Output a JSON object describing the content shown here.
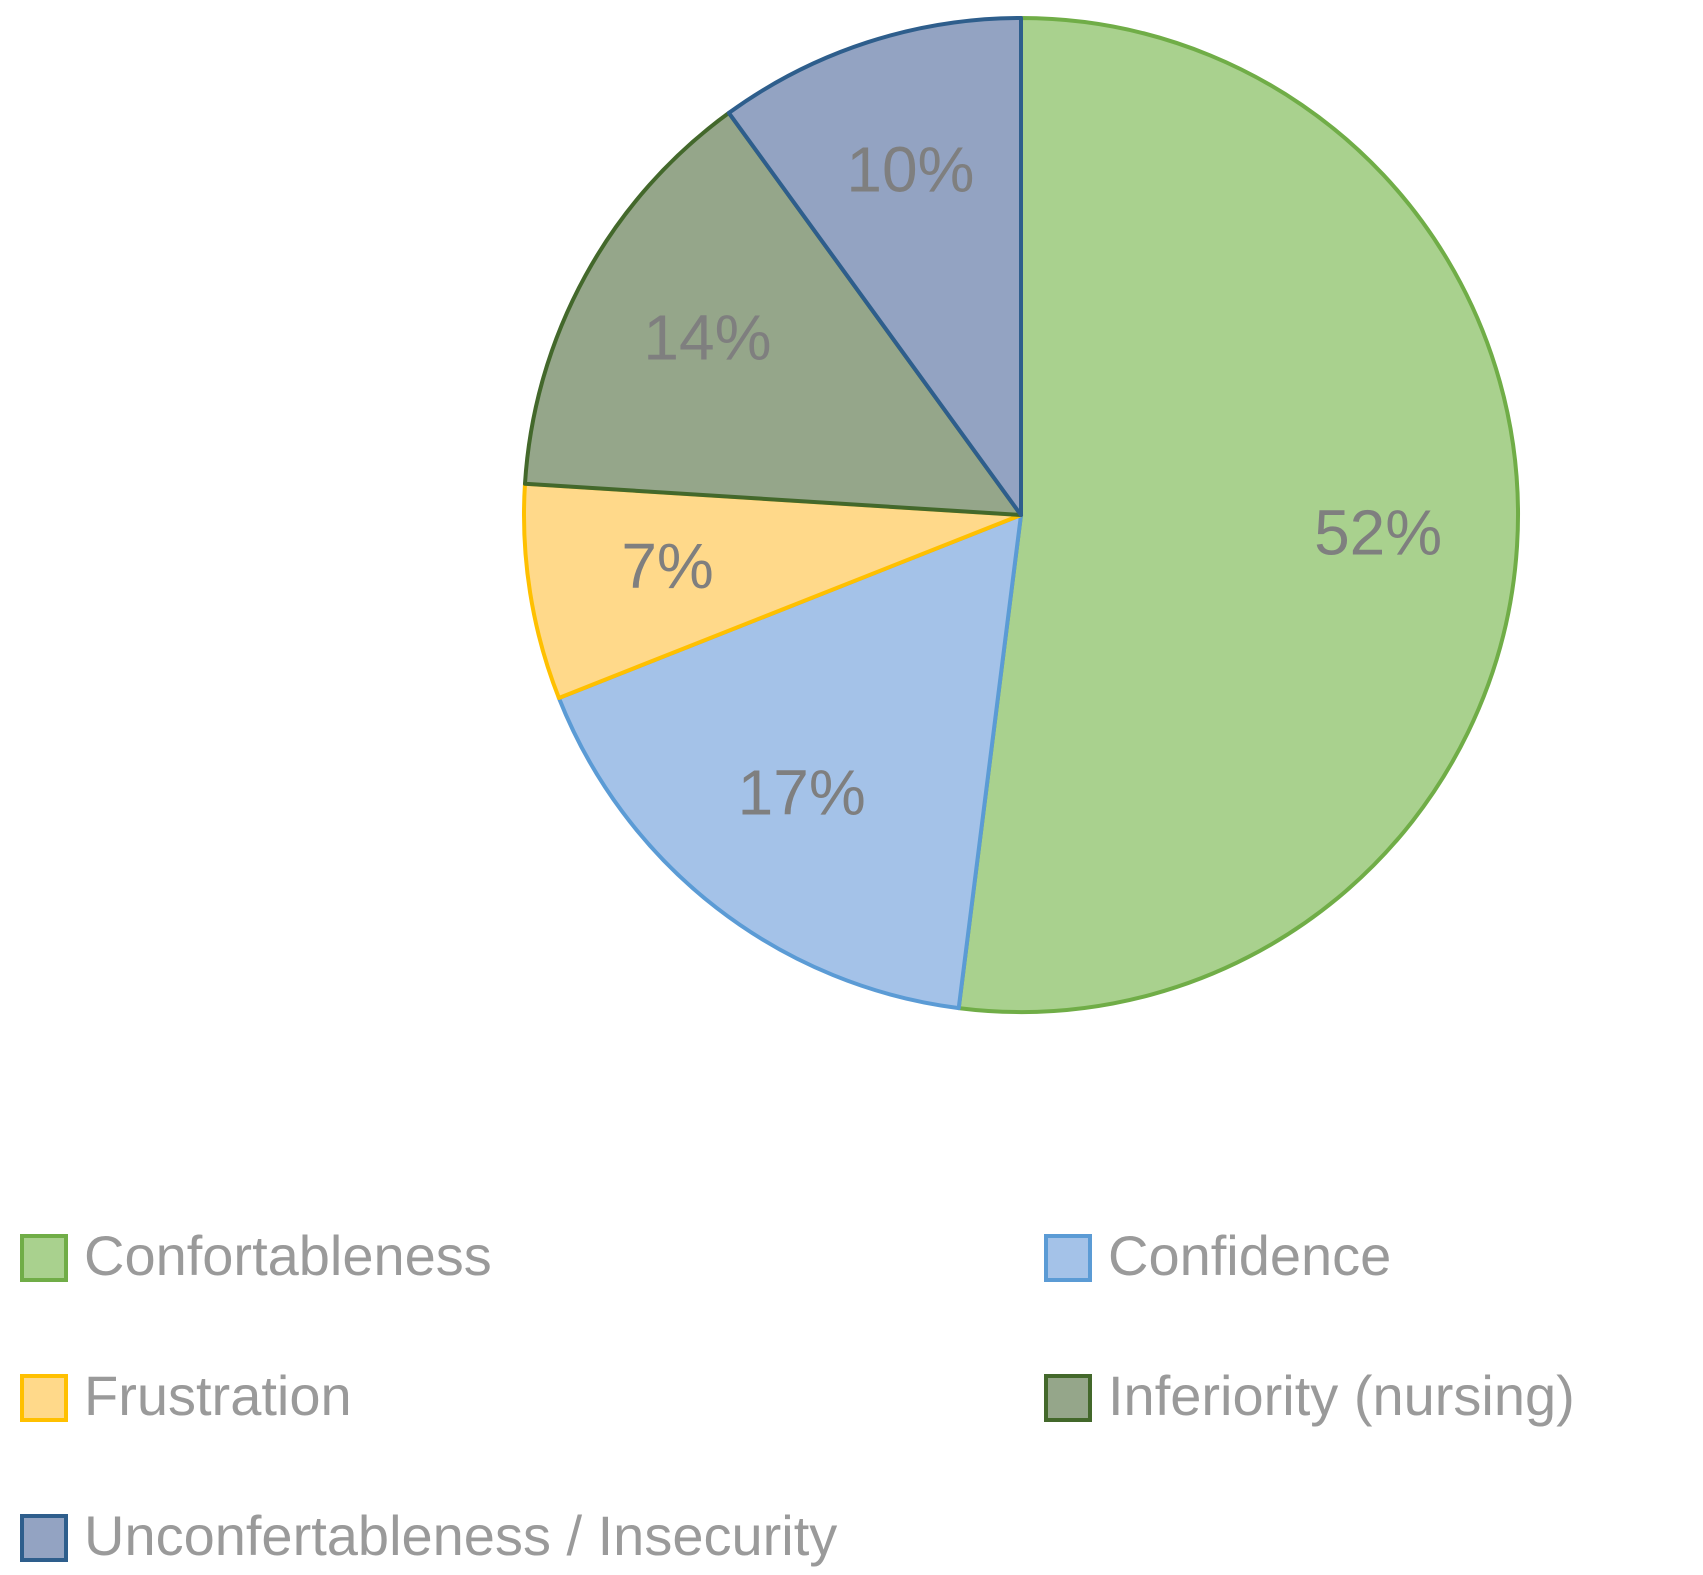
{
  "chart_data": {
    "type": "pie",
    "categories": [
      "Confortableness",
      "Confidence",
      "Frustration",
      "Inferiority (nursing)",
      "Unconfertableness / Insecurity"
    ],
    "values": [
      52,
      17,
      7,
      14,
      10
    ],
    "value_labels": [
      "52%",
      "17%",
      "7%",
      "14%",
      "10%"
    ],
    "colors": [
      "#a9d18e",
      "#a4c2e8",
      "#ffd98a",
      "#95a68a",
      "#93a3c2"
    ],
    "edge_colors": [
      "#70ad47",
      "#5b9bd5",
      "#ffc000",
      "#43682b",
      "#2e5e8c"
    ],
    "legend": "bottom"
  }
}
